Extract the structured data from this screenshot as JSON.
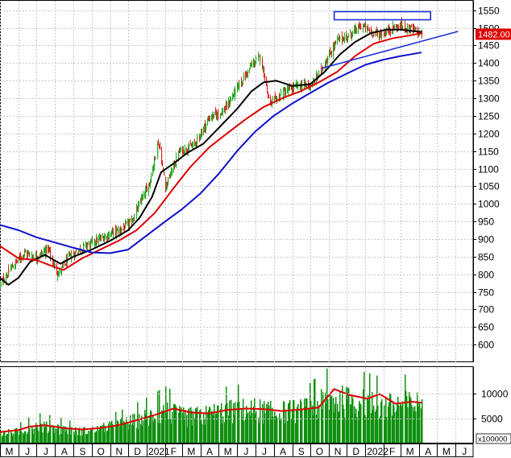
{
  "chart_data": [
    {
      "type": "candlestick",
      "panel": "price",
      "title": "",
      "xlabel": "",
      "ylabel": "",
      "ylim": [
        550,
        1570
      ],
      "y_ticks": [
        600,
        650,
        700,
        750,
        800,
        850,
        900,
        950,
        1000,
        1050,
        1100,
        1150,
        1200,
        1250,
        1300,
        1350,
        1400,
        1450,
        1500,
        1550
      ],
      "last_price_label": "1482.00",
      "grid": true,
      "x_start": "2020-05-01",
      "x_end": "2022-06-30",
      "price_anchors": [
        [
          "2020-05-01",
          770
        ],
        [
          "2020-05-20",
          820
        ],
        [
          "2020-06-10",
          860
        ],
        [
          "2020-07-01",
          850
        ],
        [
          "2020-07-20",
          870
        ],
        [
          "2020-08-05",
          800
        ],
        [
          "2020-08-25",
          850
        ],
        [
          "2020-09-20",
          880
        ],
        [
          "2020-10-20",
          905
        ],
        [
          "2020-11-15",
          925
        ],
        [
          "2020-12-05",
          945
        ],
        [
          "2021-01-05",
          1060
        ],
        [
          "2021-01-20",
          1175
        ],
        [
          "2021-02-01",
          1050
        ],
        [
          "2021-02-25",
          1150
        ],
        [
          "2021-03-20",
          1165
        ],
        [
          "2021-04-15",
          1245
        ],
        [
          "2021-05-10",
          1265
        ],
        [
          "2021-06-01",
          1330
        ],
        [
          "2021-06-25",
          1395
        ],
        [
          "2021-07-10",
          1420
        ],
        [
          "2021-07-25",
          1280
        ],
        [
          "2021-08-15",
          1315
        ],
        [
          "2021-09-10",
          1335
        ],
        [
          "2021-10-05",
          1340
        ],
        [
          "2021-10-25",
          1400
        ],
        [
          "2021-11-15",
          1465
        ],
        [
          "2021-12-05",
          1480
        ],
        [
          "2021-12-25",
          1505
        ],
        [
          "2022-01-10",
          1490
        ],
        [
          "2022-01-25",
          1480
        ],
        [
          "2022-02-15",
          1500
        ],
        [
          "2022-03-05",
          1505
        ],
        [
          "2022-03-20",
          1495
        ],
        [
          "2022-04-05",
          1482
        ]
      ],
      "moving_averages": [
        {
          "color": "#000000",
          "points": [
            [
              "2020-05-01",
              790
            ],
            [
              "2020-05-15",
              770
            ],
            [
              "2020-06-01",
              790
            ],
            [
              "2020-06-20",
              835
            ],
            [
              "2020-07-15",
              855
            ],
            [
              "2020-08-10",
              830
            ],
            [
              "2020-09-01",
              850
            ],
            [
              "2020-10-01",
              870
            ],
            [
              "2020-11-01",
              895
            ],
            [
              "2020-12-01",
              925
            ],
            [
              "2020-12-20",
              960
            ],
            [
              "2021-01-10",
              1020
            ],
            [
              "2021-01-25",
              1090
            ],
            [
              "2021-02-15",
              1115
            ],
            [
              "2021-03-10",
              1145
            ],
            [
              "2021-04-05",
              1170
            ],
            [
              "2021-05-01",
              1215
            ],
            [
              "2021-06-01",
              1270
            ],
            [
              "2021-06-25",
              1320
            ],
            [
              "2021-07-15",
              1345
            ],
            [
              "2021-08-05",
              1350
            ],
            [
              "2021-09-01",
              1335
            ],
            [
              "2021-10-01",
              1340
            ],
            [
              "2021-10-25",
              1375
            ],
            [
              "2021-11-20",
              1425
            ],
            [
              "2021-12-15",
              1460
            ],
            [
              "2022-01-10",
              1485
            ],
            [
              "2022-02-05",
              1495
            ],
            [
              "2022-03-01",
              1495
            ],
            [
              "2022-04-05",
              1488
            ]
          ]
        },
        {
          "color": "#dd0000",
          "points": [
            [
              "2020-05-01",
              880
            ],
            [
              "2020-06-01",
              845
            ],
            [
              "2020-07-01",
              840
            ],
            [
              "2020-08-01",
              820
            ],
            [
              "2020-08-15",
              812
            ],
            [
              "2020-09-15",
              845
            ],
            [
              "2020-10-15",
              870
            ],
            [
              "2020-11-15",
              895
            ],
            [
              "2020-12-15",
              925
            ],
            [
              "2021-01-15",
              975
            ],
            [
              "2021-02-15",
              1045
            ],
            [
              "2021-03-15",
              1105
            ],
            [
              "2021-04-15",
              1160
            ],
            [
              "2021-05-15",
              1200
            ],
            [
              "2021-06-15",
              1240
            ],
            [
              "2021-07-15",
              1275
            ],
            [
              "2021-08-15",
              1300
            ],
            [
              "2021-09-15",
              1320
            ],
            [
              "2021-10-15",
              1345
            ],
            [
              "2021-11-15",
              1375
            ],
            [
              "2021-12-15",
              1420
            ],
            [
              "2022-01-15",
              1455
            ],
            [
              "2022-02-15",
              1470
            ],
            [
              "2022-03-15",
              1478
            ],
            [
              "2022-04-05",
              1485
            ]
          ]
        },
        {
          "color": "#1010cc",
          "points": [
            [
              "2020-05-01",
              940
            ],
            [
              "2020-06-01",
              925
            ],
            [
              "2020-07-01",
              905
            ],
            [
              "2020-08-01",
              890
            ],
            [
              "2020-09-01",
              875
            ],
            [
              "2020-10-01",
              862
            ],
            [
              "2020-11-01",
              860
            ],
            [
              "2020-12-01",
              870
            ],
            [
              "2021-01-01",
              910
            ],
            [
              "2021-02-01",
              950
            ],
            [
              "2021-03-01",
              985
            ],
            [
              "2021-04-01",
              1030
            ],
            [
              "2021-05-01",
              1085
            ],
            [
              "2021-06-01",
              1150
            ],
            [
              "2021-07-01",
              1205
            ],
            [
              "2021-08-01",
              1250
            ],
            [
              "2021-09-01",
              1285
            ],
            [
              "2021-10-01",
              1315
            ],
            [
              "2021-11-01",
              1345
            ],
            [
              "2021-12-01",
              1370
            ],
            [
              "2022-01-01",
              1395
            ],
            [
              "2022-02-01",
              1410
            ],
            [
              "2022-03-01",
              1420
            ],
            [
              "2022-04-05",
              1430
            ]
          ]
        }
      ],
      "annotations": [
        {
          "kind": "trendline",
          "color": "#1a2ed6",
          "from": [
            "2021-10-20",
            1385
          ],
          "to": [
            "2022-06-05",
            1490
          ]
        },
        {
          "kind": "rectangle",
          "color": "#1a2ed6",
          "from": [
            "2021-11-10",
            1546
          ],
          "to": [
            "2022-04-20",
            1523
          ]
        }
      ]
    },
    {
      "type": "bar",
      "panel": "volume",
      "title": "",
      "ylim": [
        0,
        15500
      ],
      "y_ticks": [
        5000,
        10000
      ],
      "unit_label": "x100000",
      "volume_anchors": [
        [
          "2020-05-01",
          2000
        ],
        [
          "2020-06-01",
          2400
        ],
        [
          "2020-07-01",
          3600
        ],
        [
          "2020-08-01",
          3200
        ],
        [
          "2020-09-01",
          2500
        ],
        [
          "2020-10-01",
          2600
        ],
        [
          "2020-11-01",
          3500
        ],
        [
          "2020-12-01",
          4300
        ],
        [
          "2021-01-01",
          5500
        ],
        [
          "2021-02-01",
          6800
        ],
        [
          "2021-03-01",
          5600
        ],
        [
          "2021-04-01",
          5800
        ],
        [
          "2021-05-01",
          6600
        ],
        [
          "2021-06-01",
          7000
        ],
        [
          "2021-07-01",
          7200
        ],
        [
          "2021-08-01",
          6500
        ],
        [
          "2021-09-01",
          6900
        ],
        [
          "2021-10-01",
          7200
        ],
        [
          "2021-11-01",
          9500
        ],
        [
          "2021-12-01",
          9000
        ],
        [
          "2022-01-01",
          8500
        ],
        [
          "2022-02-01",
          7800
        ],
        [
          "2022-03-01",
          8200
        ],
        [
          "2022-04-05",
          8300
        ]
      ],
      "moving_average": {
        "color": "#dd0000",
        "points": [
          [
            "2020-05-01",
            2200
          ],
          [
            "2020-06-01",
            2600
          ],
          [
            "2020-06-20",
            3300
          ],
          [
            "2020-07-15",
            3600
          ],
          [
            "2020-08-15",
            3000
          ],
          [
            "2020-09-15",
            2700
          ],
          [
            "2020-10-15",
            3000
          ],
          [
            "2020-11-15",
            3600
          ],
          [
            "2020-12-15",
            4600
          ],
          [
            "2021-01-15",
            5700
          ],
          [
            "2021-02-15",
            7000
          ],
          [
            "2021-03-15",
            6200
          ],
          [
            "2021-04-15",
            6000
          ],
          [
            "2021-05-15",
            6700
          ],
          [
            "2021-06-15",
            7000
          ],
          [
            "2021-07-15",
            6900
          ],
          [
            "2021-08-15",
            6500
          ],
          [
            "2021-09-15",
            6800
          ],
          [
            "2021-10-15",
            7200
          ],
          [
            "2021-11-10",
            11000
          ],
          [
            "2021-12-05",
            9800
          ],
          [
            "2022-01-05",
            9000
          ],
          [
            "2022-01-25",
            10000
          ],
          [
            "2022-02-20",
            8000
          ],
          [
            "2022-03-20",
            8400
          ],
          [
            "2022-04-05",
            8200
          ]
        ]
      }
    }
  ],
  "x_axis": {
    "month_labels": [
      [
        "2020-05-01",
        "M"
      ],
      [
        "2020-06-01",
        "J"
      ],
      [
        "2020-07-01",
        "J"
      ],
      [
        "2020-08-01",
        "A"
      ],
      [
        "2020-09-01",
        "S"
      ],
      [
        "2020-10-01",
        "O"
      ],
      [
        "2020-11-01",
        "N"
      ],
      [
        "2020-12-01",
        "D"
      ],
      [
        "2021-01-01",
        "2021"
      ],
      [
        "2021-02-01",
        "F"
      ],
      [
        "2021-03-01",
        "M"
      ],
      [
        "2021-04-01",
        "A"
      ],
      [
        "2021-05-01",
        "M"
      ],
      [
        "2021-06-01",
        "J"
      ],
      [
        "2021-07-01",
        "J"
      ],
      [
        "2021-08-01",
        "A"
      ],
      [
        "2021-09-01",
        "S"
      ],
      [
        "2021-10-01",
        "O"
      ],
      [
        "2021-11-01",
        "N"
      ],
      [
        "2021-12-01",
        "D"
      ],
      [
        "2022-01-01",
        "2022"
      ],
      [
        "2022-02-01",
        "F"
      ],
      [
        "2022-03-01",
        "M"
      ],
      [
        "2022-04-01",
        "A"
      ],
      [
        "2022-05-01",
        "M"
      ],
      [
        "2022-06-01",
        "J"
      ]
    ]
  },
  "colors": {
    "up": "#22aa22",
    "down": "#dd2222",
    "volume_bar": "#109010",
    "grid": "#c8c8c8",
    "price_tag_bg": "#dd0000",
    "price_tag_text": "#ffffff"
  }
}
